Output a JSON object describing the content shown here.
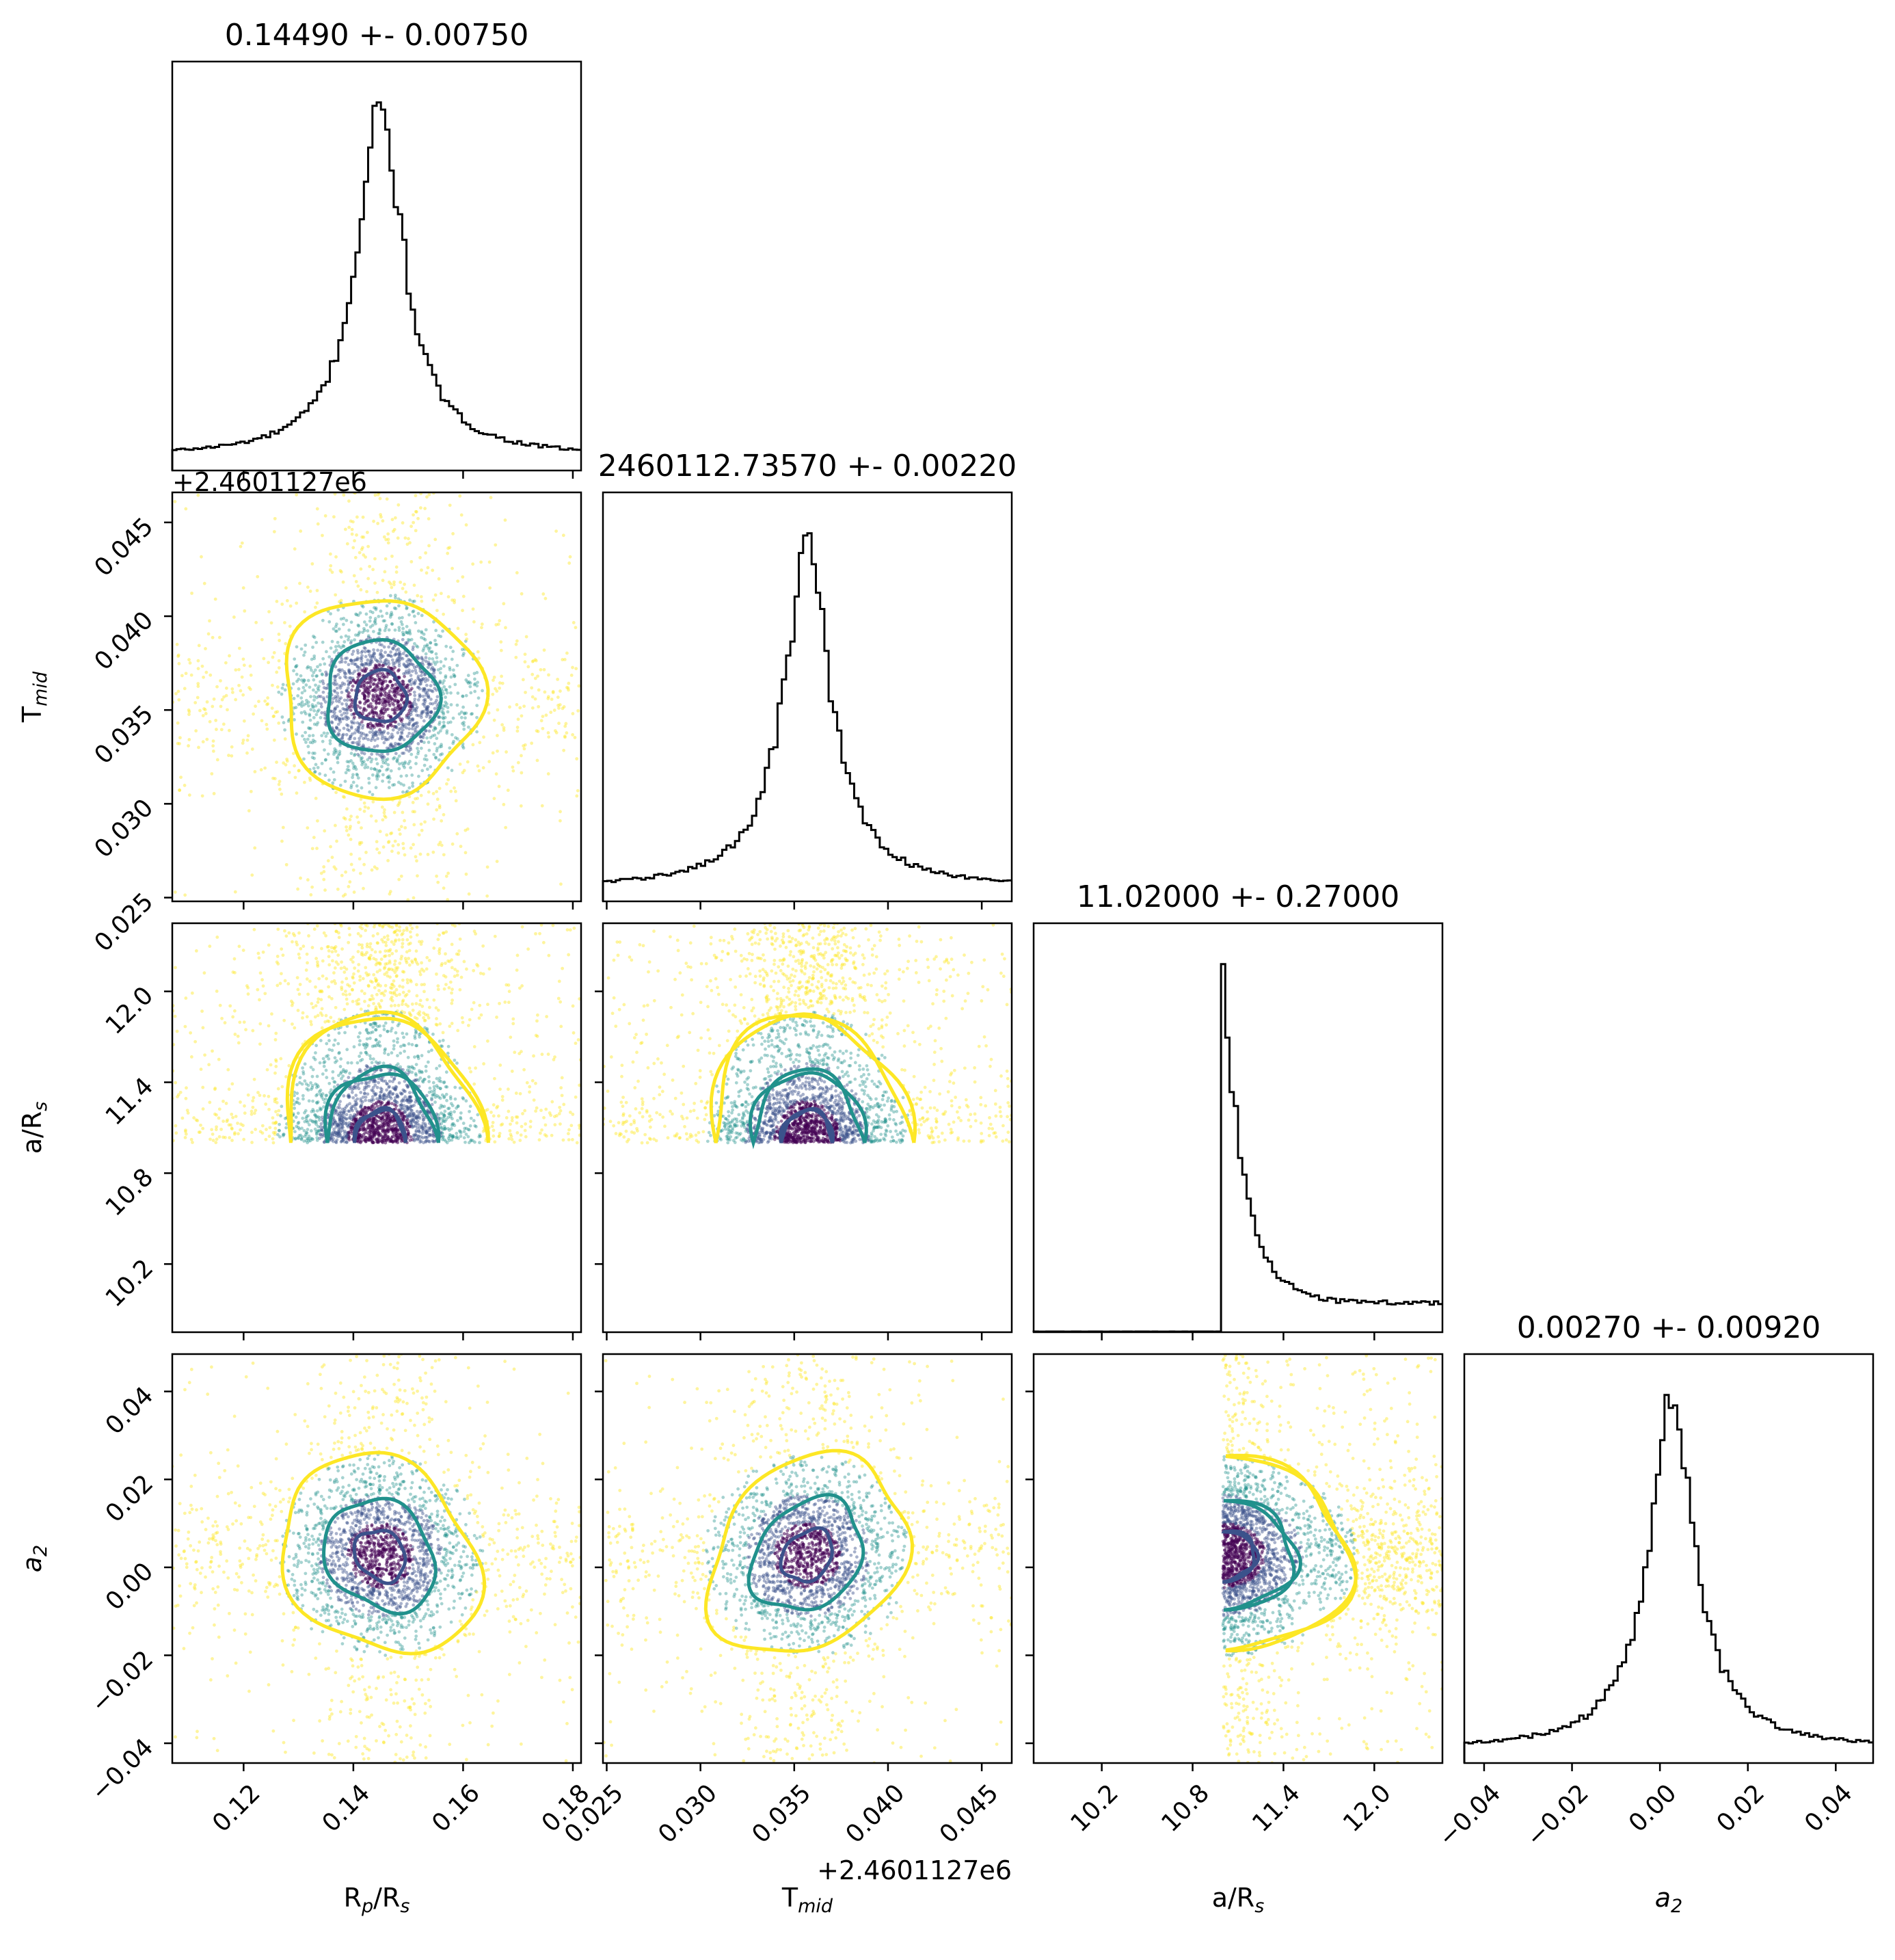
{
  "chart_data": {
    "type": "scatter",
    "title": "",
    "parameters": [
      {
        "key": "rp",
        "label": "Rp/Rs",
        "label_base": "R",
        "label_sub1": "p",
        "label_mid": "/R",
        "label_sub2": "s",
        "range": [
          0.107,
          0.1815
        ],
        "ticks": [
          0.12,
          0.14,
          0.16,
          0.18
        ],
        "tick_labels": [
          "0.12",
          "0.14",
          "0.16",
          "0.18"
        ],
        "median": 0.1449,
        "sigma": 0.0075,
        "title": "0.14490 +- 0.00750"
      },
      {
        "key": "tmid",
        "label": "Tmid",
        "label_base": "T",
        "label_sub1": "mid",
        "label_mid": "",
        "label_sub2": "",
        "range": [
          0.0248,
          0.0466
        ],
        "ticks": [
          0.025,
          0.03,
          0.035,
          0.04,
          0.045
        ],
        "tick_labels": [
          "0.025",
          "0.030",
          "0.035",
          "0.040",
          "0.045"
        ],
        "offset_label": "+2.4601127e6",
        "median": 0.0357,
        "sigma": 0.0022,
        "title": "2460112.73570 +- 0.00220"
      },
      {
        "key": "ars",
        "label": "a/Rs",
        "label_base": "a/R",
        "label_sub1": "",
        "label_mid": "",
        "label_sub2": "s",
        "range": [
          9.75,
          12.45
        ],
        "ticks": [
          10.2,
          10.8,
          11.4,
          12.0
        ],
        "tick_labels": [
          "10.2",
          "10.8",
          "11.4",
          "12.0"
        ],
        "median": 11.02,
        "sigma": 0.27,
        "lower_bound": 11.0,
        "title": "11.02000 +- 0.27000"
      },
      {
        "key": "a2",
        "label": "a2",
        "label_base": "a",
        "label_sub1": "",
        "label_mid": "",
        "label_sub2": "2",
        "italic": true,
        "range": [
          -0.0445,
          0.0485
        ],
        "ticks": [
          -0.04,
          -0.02,
          0.0,
          0.02,
          0.04
        ],
        "tick_labels": [
          "−0.04",
          "−0.02",
          "0.00",
          "0.02",
          "0.04"
        ],
        "median": 0.0027,
        "sigma": 0.0092,
        "title": "0.00270 +- 0.00920"
      }
    ],
    "x_offset_label": "+2.4601127e6",
    "y_offset_label": "+2.4601127e6",
    "contour_levels": [
      "0.5-sigma",
      "1-sigma",
      "2-sigma"
    ],
    "colors": {
      "histogram": "#000000",
      "inner_contour": "#3b528b",
      "middle_contour": "#21918c",
      "outer_contour": "#fde725",
      "core": "#440154",
      "axes": "#000000"
    },
    "grid": false,
    "legend": "none"
  }
}
